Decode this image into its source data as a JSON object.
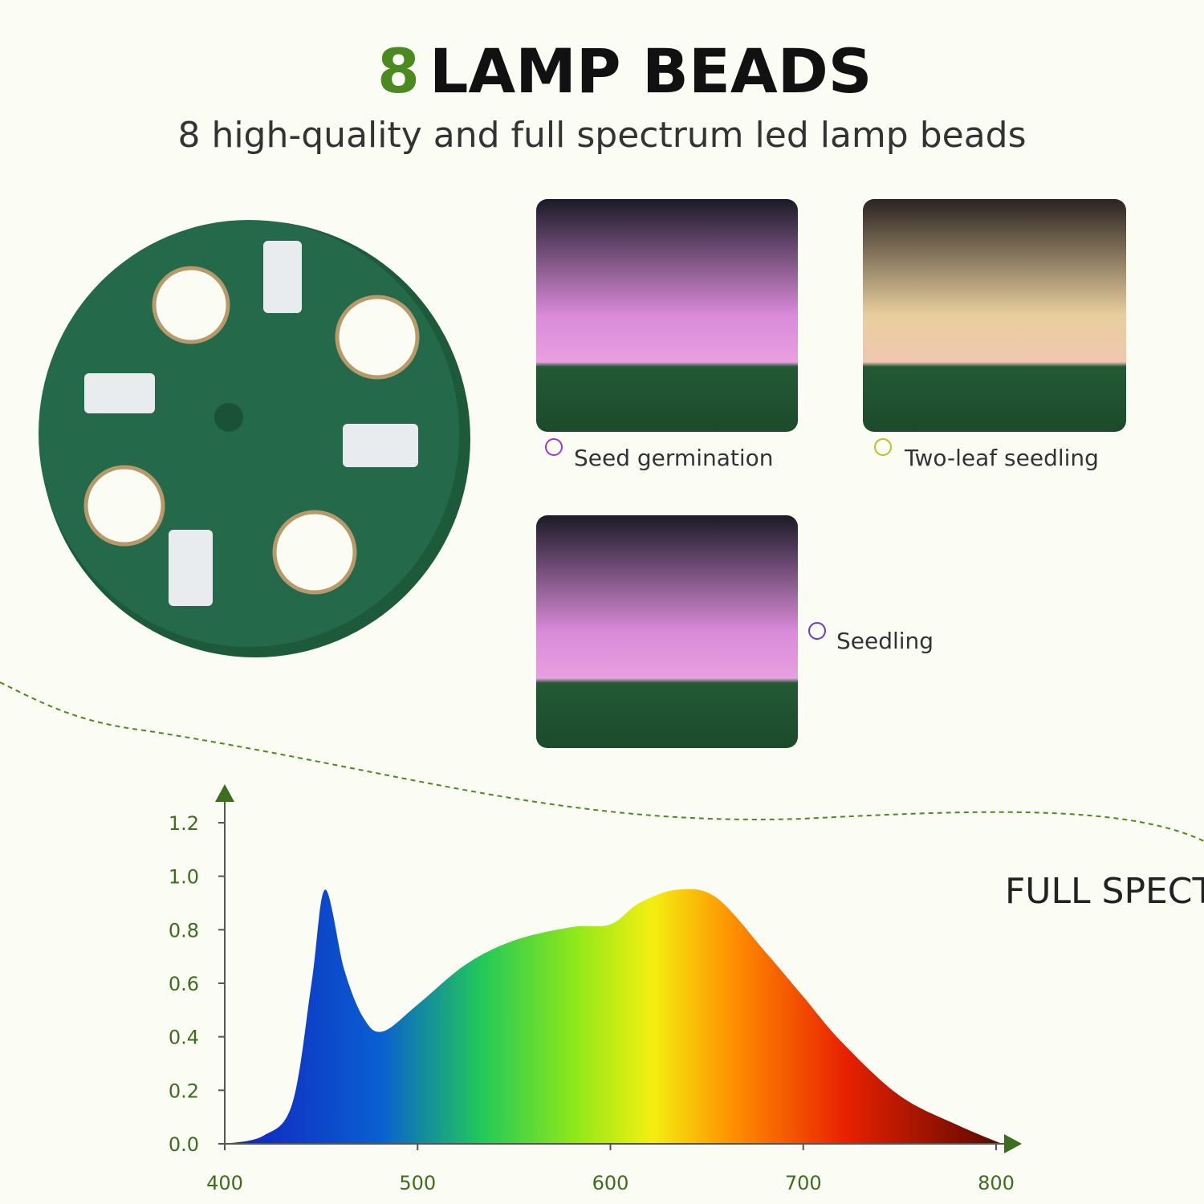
{
  "header": {
    "title_number": "8",
    "title": "LAMP BEADS",
    "subtitle": "8 high-quality and full spectrum led lamp beads"
  },
  "stages": [
    {
      "label": "Seed germination"
    },
    {
      "label": "Two-leaf seedling"
    },
    {
      "label": "Seedling"
    }
  ],
  "chart_data": {
    "type": "area",
    "title": "FULL SPECTRUM",
    "x": [
      400,
      420,
      435,
      445,
      452,
      462,
      472,
      482,
      500,
      525,
      550,
      580,
      600,
      615,
      635,
      655,
      680,
      700,
      720,
      750,
      780,
      803
    ],
    "values": [
      0.0,
      0.03,
      0.15,
      0.6,
      0.95,
      0.65,
      0.47,
      0.42,
      0.52,
      0.67,
      0.76,
      0.81,
      0.82,
      0.9,
      0.95,
      0.92,
      0.72,
      0.55,
      0.38,
      0.18,
      0.07,
      0.0
    ],
    "xlim": [
      400,
      810
    ],
    "ylim": [
      0,
      1.32
    ],
    "xticks": [
      400,
      500,
      600,
      700,
      800
    ],
    "yticks": [
      {
        "value": 0,
        "label": "0.0"
      },
      {
        "value": 0.2,
        "label": "0.2"
      },
      {
        "value": 0.4,
        "label": "0.4"
      },
      {
        "value": 0.6,
        "label": "0.6"
      },
      {
        "value": 0.8,
        "label": "0.8"
      },
      {
        "value": 1.0,
        "label": "1.0"
      },
      {
        "value": 1.2,
        "label": "1.2"
      }
    ]
  }
}
